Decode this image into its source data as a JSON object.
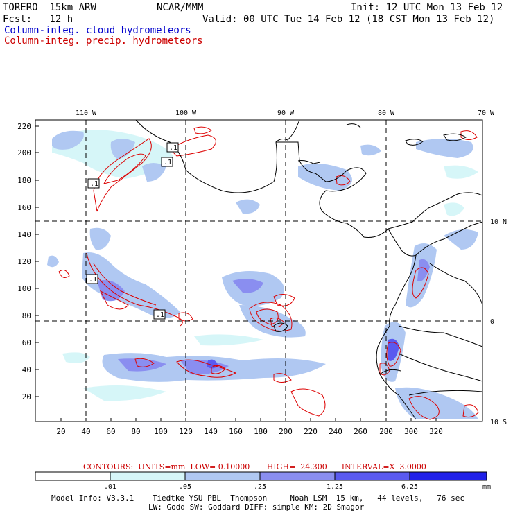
{
  "header": {
    "model_name": "TORERO  15km ARW",
    "org": "NCAR/MMM",
    "init": "Init: 12 UTC Mon 13 Feb 12",
    "fcst": "Fcst:   12 h",
    "valid": "Valid: 00 UTC Tue 14 Feb 12 (18 CST Mon 13 Feb 12)",
    "field1": "Column-integ. cloud hydrometeors",
    "field2": "Column-integ. precip. hydrometeors"
  },
  "colors": {
    "field1": "#0000cc",
    "field2": "#cc0000",
    "shade_1": "#d6f6f8",
    "shade_2": "#b0c8f2",
    "shade_3": "#8a8ef0",
    "shade_4": "#5a5af0",
    "shade_5": "#2020e8"
  },
  "map": {
    "lon_labels": [
      "110 W",
      "100 W",
      "90 W",
      "80 W",
      "70 W"
    ],
    "lat_labels": [
      "10 N",
      "0",
      "10 S"
    ],
    "y_ticks": [
      "220",
      "200",
      "180",
      "160",
      "140",
      "120",
      "100",
      "80",
      "60",
      "40",
      "20"
    ],
    "x_ticks": [
      "20",
      "40",
      "60",
      "80",
      "100",
      "120",
      "140",
      "160",
      "180",
      "200",
      "220",
      "240",
      "260",
      "280",
      "300",
      "320"
    ],
    "contour_labels": [
      ".1",
      ".1",
      ".1",
      ".1",
      ".1"
    ]
  },
  "footer": {
    "contour_info": "CONTOURS:  UNITS=mm  LOW= 0.10000       HIGH=  24.300      INTERVAL=X  3.0000",
    "colorbar_labels": [
      ".01",
      ".05",
      ".25",
      "1.25",
      "6.25"
    ],
    "units": "mm",
    "model_info_1": "Model Info: V3.3.1    Tiedtke YSU PBL  Thompson     Noah LSM  15 km,   44 levels,   76 sec",
    "model_info_2": "LW: Godd SW: Goddard DIFF: simple KM: 2D Smagor"
  }
}
